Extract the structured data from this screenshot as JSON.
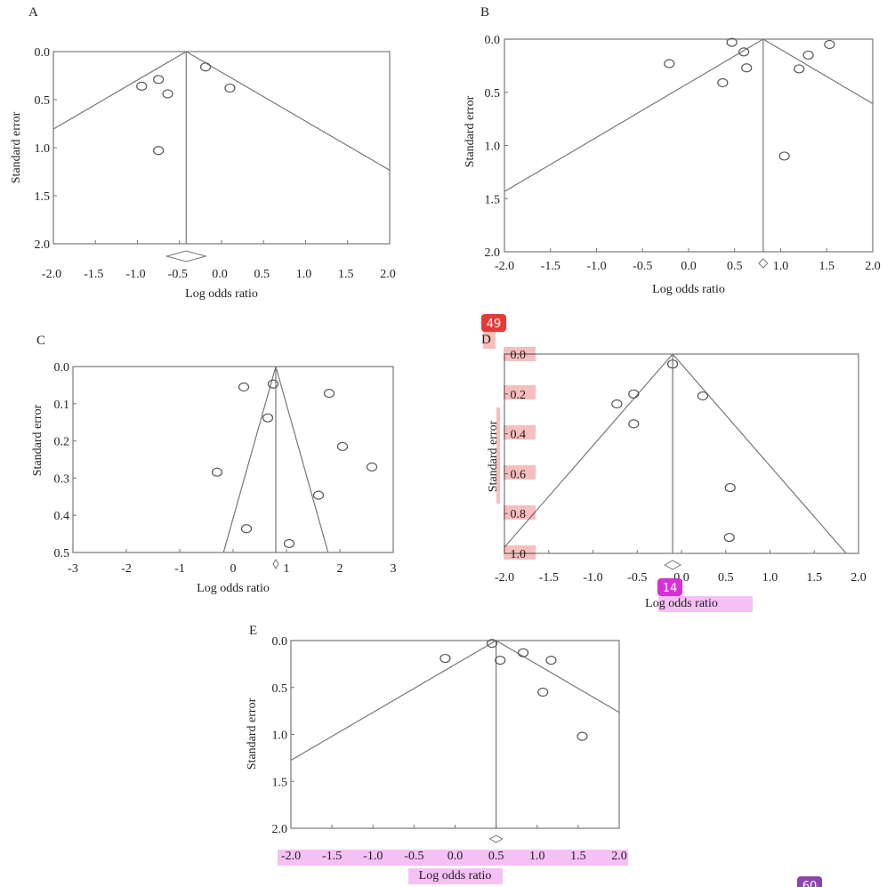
{
  "colors": {
    "line": "#777777",
    "marker": "#555555",
    "highlight_red": "#f6b3b3",
    "highlight_pink": "#f3b6f3"
  },
  "badges": [
    "49",
    "14",
    "60"
  ],
  "chart_data": [
    {
      "panel": "A",
      "type": "scatter",
      "xlabel": "Log odds ratio",
      "ylabel": "Standard error",
      "xlim": [
        -2.0,
        2.0
      ],
      "ylim": [
        0.0,
        2.0
      ],
      "y_inverted": true,
      "xticks": [
        "-2.0",
        "-1.5",
        "-1.0",
        "-0.5",
        "0.0",
        "0.5",
        "1.0",
        "1.5",
        "2.0"
      ],
      "yticks": [
        "0.0",
        "0.5",
        "1.0",
        "1.5",
        "2.0"
      ],
      "pooled": -0.42,
      "funnel_slope": 1.96,
      "points": [
        [
          -0.95,
          0.36
        ],
        [
          -0.75,
          0.29
        ],
        [
          -0.64,
          0.44
        ],
        [
          -0.75,
          1.03
        ],
        [
          -0.19,
          0.16
        ],
        [
          0.1,
          0.38
        ]
      ]
    },
    {
      "panel": "B",
      "type": "scatter",
      "xlabel": "Log odds ratio",
      "ylabel": "Standard error",
      "xlim": [
        -2.0,
        2.0
      ],
      "ylim": [
        0.0,
        2.0
      ],
      "y_inverted": true,
      "xticks": [
        "-2.0",
        "-1.5",
        "-1.0",
        "-0.5",
        "0.0",
        "0.5",
        "1.0",
        "1.5",
        "2.0"
      ],
      "yticks": [
        "0.0",
        "0.5",
        "1.0",
        "1.5",
        "2.0"
      ],
      "pooled": 0.81,
      "funnel_slope": 1.96,
      "points": [
        [
          -0.21,
          0.23
        ],
        [
          0.47,
          0.03
        ],
        [
          0.6,
          0.12
        ],
        [
          0.63,
          0.27
        ],
        [
          0.37,
          0.41
        ],
        [
          1.2,
          0.28
        ],
        [
          1.3,
          0.15
        ],
        [
          1.53,
          0.05
        ],
        [
          1.04,
          1.1
        ]
      ]
    },
    {
      "panel": "C",
      "type": "scatter",
      "xlabel": "Log odds ratio",
      "ylabel": "Standard error",
      "xlim": [
        -3,
        3
      ],
      "ylim": [
        0.0,
        0.5
      ],
      "y_inverted": true,
      "xticks": [
        "-3",
        "-2",
        "-1",
        "0",
        "1",
        "2",
        "3"
      ],
      "yticks": [
        "0.0",
        "0.1",
        "0.2",
        "0.3",
        "0.4",
        "0.5"
      ],
      "pooled": 0.8,
      "funnel_slope": 1.96,
      "points": [
        [
          0.2,
          0.055
        ],
        [
          0.75,
          0.047
        ],
        [
          0.65,
          0.138
        ],
        [
          1.8,
          0.072
        ],
        [
          2.05,
          0.215
        ],
        [
          2.6,
          0.27
        ],
        [
          -0.3,
          0.284
        ],
        [
          1.6,
          0.346
        ],
        [
          0.25,
          0.436
        ],
        [
          1.05,
          0.476
        ]
      ]
    },
    {
      "panel": "D",
      "type": "scatter",
      "xlabel": "Log odds ratio",
      "ylabel": "Standard error",
      "xlim": [
        -2.0,
        2.0
      ],
      "ylim": [
        0.0,
        1.0
      ],
      "y_inverted": true,
      "xticks": [
        "-2.0",
        "-1.5",
        "-1.0",
        "-0.5",
        "0.0",
        "0.5",
        "1.0",
        "1.5",
        "2.0"
      ],
      "yticks": [
        "0.0",
        "0.2",
        "0.4",
        "0.6",
        "0.8",
        "1.0"
      ],
      "pooled": -0.1,
      "funnel_slope": 1.96,
      "points": [
        [
          -0.1,
          0.05
        ],
        [
          -0.54,
          0.2
        ],
        [
          -0.73,
          0.25
        ],
        [
          -0.54,
          0.35
        ],
        [
          0.24,
          0.21
        ],
        [
          0.55,
          0.67
        ],
        [
          0.54,
          0.92
        ]
      ]
    },
    {
      "panel": "E",
      "type": "scatter",
      "xlabel": "Log odds ratio",
      "ylabel": "Standard error",
      "xlim": [
        -2.0,
        2.0
      ],
      "ylim": [
        0.0,
        2.0
      ],
      "y_inverted": true,
      "xticks": [
        "-2.0",
        "-1.5",
        "-1.0",
        "-0.5",
        "0.0",
        "0.5",
        "1.0",
        "1.5",
        "2.0"
      ],
      "yticks": [
        "0.0",
        "0.5",
        "1.0",
        "1.5",
        "2.0"
      ],
      "pooled": 0.5,
      "funnel_slope": 1.96,
      "points": [
        [
          0.45,
          0.03
        ],
        [
          -0.12,
          0.19
        ],
        [
          0.55,
          0.21
        ],
        [
          0.83,
          0.13
        ],
        [
          1.17,
          0.21
        ],
        [
          1.07,
          0.55
        ],
        [
          1.55,
          1.02
        ]
      ]
    }
  ]
}
